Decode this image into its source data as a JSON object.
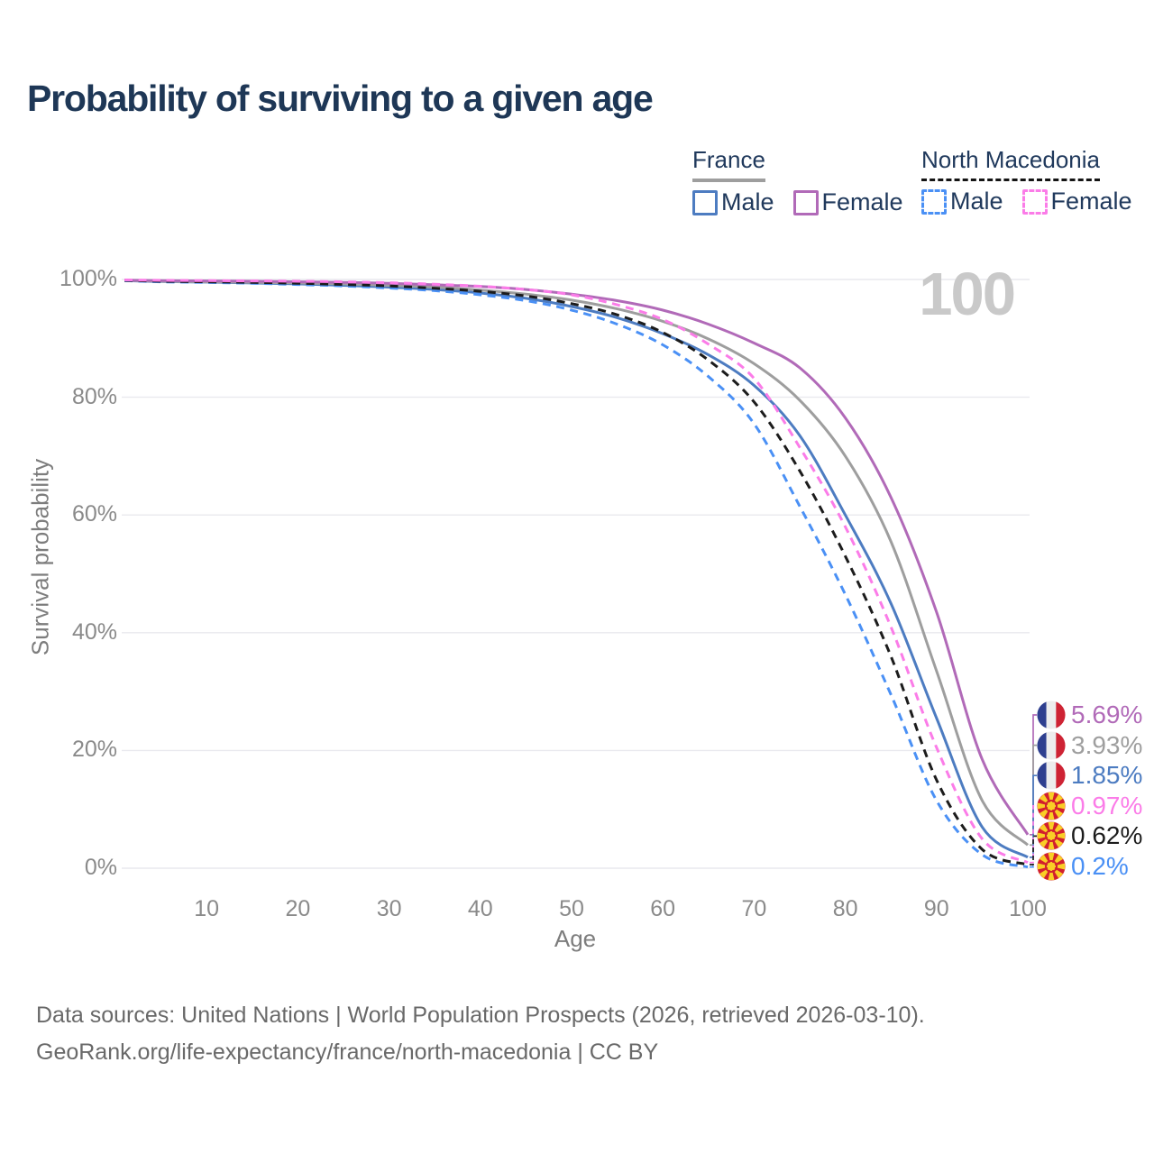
{
  "title": "Probability of surviving to a given age",
  "watermark_age_label": "100",
  "legend": {
    "groups": [
      {
        "label": "France",
        "line_style": "solid",
        "line_color": "#9e9e9e",
        "items": [
          {
            "label": "Male",
            "color": "#4d7cc1",
            "style": "solid"
          },
          {
            "label": "Female",
            "color": "#b16ab8",
            "style": "solid"
          }
        ]
      },
      {
        "label": "North Macedonia",
        "line_style": "dashed",
        "line_color": "#141414",
        "items": [
          {
            "label": "Male",
            "color": "#4a90f5",
            "style": "dashed"
          },
          {
            "label": "Female",
            "color": "#fb7ce8",
            "style": "dashed"
          }
        ]
      }
    ]
  },
  "chart_data": {
    "type": "line",
    "xlabel": "Age",
    "ylabel": "Survival probability",
    "xlim": [
      0,
      100
    ],
    "ylim": [
      0,
      100
    ],
    "grid": "horizontal",
    "legend_position": "top-right",
    "xticks": [
      10,
      20,
      30,
      40,
      50,
      60,
      70,
      80,
      90,
      100
    ],
    "yticks": [
      0,
      20,
      40,
      60,
      80,
      100
    ],
    "ytick_suffix": "%",
    "x": [
      1,
      5,
      10,
      15,
      20,
      25,
      30,
      35,
      40,
      45,
      50,
      55,
      60,
      65,
      70,
      75,
      80,
      85,
      90,
      95,
      100
    ],
    "series": [
      {
        "name": "France Female",
        "country": "France",
        "sex": "Female",
        "color": "#b16ab8",
        "style": "solid",
        "flag": "france",
        "end_label": "5.69%",
        "values": [
          99.9,
          99.8,
          99.75,
          99.7,
          99.6,
          99.5,
          99.35,
          99.1,
          98.8,
          98.3,
          97.5,
          96.4,
          94.8,
          92.4,
          89.2,
          85.0,
          76.5,
          63.0,
          43.5,
          18.5,
          5.69
        ]
      },
      {
        "name": "France Both sexes",
        "country": "France",
        "sex": "Both",
        "color": "#9e9e9e",
        "style": "solid",
        "flag": "france",
        "end_label": "3.93%",
        "values": [
          99.85,
          99.7,
          99.6,
          99.5,
          99.4,
          99.25,
          99.0,
          98.7,
          98.2,
          97.5,
          96.5,
          95.0,
          92.9,
          89.9,
          85.7,
          79.5,
          70.0,
          55.5,
          33.5,
          11.5,
          3.93
        ]
      },
      {
        "name": "France Male",
        "country": "France",
        "sex": "Male",
        "color": "#4d7cc1",
        "style": "solid",
        "flag": "france",
        "end_label": "1.85%",
        "values": [
          99.8,
          99.65,
          99.55,
          99.4,
          99.25,
          99.0,
          98.7,
          98.3,
          97.7,
          96.8,
          95.4,
          93.5,
          90.8,
          87.2,
          82.0,
          73.5,
          60.0,
          45.0,
          25.5,
          7.0,
          1.85
        ]
      },
      {
        "name": "North Macedonia Female",
        "country": "North Macedonia",
        "sex": "Female",
        "color": "#fb7ce8",
        "style": "dashed",
        "flag": "north-macedonia",
        "end_label": "0.97%",
        "values": [
          99.92,
          99.85,
          99.8,
          99.75,
          99.7,
          99.6,
          99.45,
          99.2,
          98.85,
          98.3,
          97.4,
          95.7,
          93.2,
          89.0,
          83.2,
          71.5,
          58.0,
          41.0,
          20.5,
          5.0,
          0.97
        ]
      },
      {
        "name": "North Macedonia Both sexes",
        "country": "North Macedonia",
        "sex": "Both",
        "color": "#1c1c1c",
        "style": "dashed",
        "flag": "north-macedonia",
        "end_label": "0.62%",
        "values": [
          99.85,
          99.7,
          99.6,
          99.5,
          99.35,
          99.15,
          98.9,
          98.5,
          98.0,
          97.2,
          95.9,
          94.0,
          91.0,
          86.3,
          79.2,
          67.5,
          53.0,
          36.0,
          15.0,
          3.2,
          0.62
        ]
      },
      {
        "name": "North Macedonia Male",
        "country": "North Macedonia",
        "sex": "Male",
        "color": "#4a90f5",
        "style": "dashed",
        "flag": "north-macedonia",
        "end_label": "0.2%",
        "values": [
          99.8,
          99.6,
          99.5,
          99.35,
          99.15,
          98.9,
          98.55,
          98.1,
          97.4,
          96.4,
          94.8,
          92.4,
          88.9,
          83.5,
          75.5,
          61.5,
          46.5,
          29.5,
          11.5,
          2.3,
          0.2
        ]
      }
    ]
  },
  "footer": {
    "line1": "Data sources: United Nations | World Population Prospects (2026, retrieved 2026-03-10).",
    "line2": "GeoRank.org/life-expectancy/france/north-macedonia | CC BY"
  },
  "colors": {
    "title_text": "#1e3756",
    "legend_text": "#20395c",
    "axis_text": "#8a8a8a",
    "grid_line": "#e9e9ee",
    "watermark": "#c9c9c9",
    "footer_text": "#696969",
    "france_flag_blue": "#2e3f8f",
    "france_flag_red": "#ce2334",
    "mk_flag_red": "#d21f2e",
    "mk_flag_yellow": "#f9ce26"
  }
}
